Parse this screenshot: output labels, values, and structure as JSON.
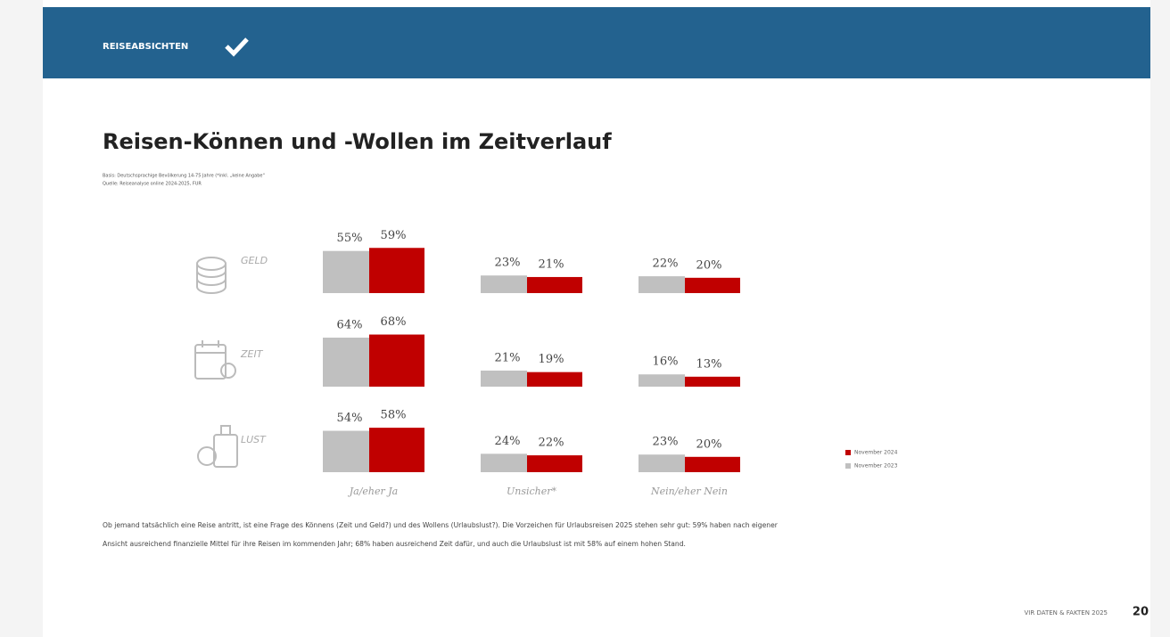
{
  "header": {
    "title": "REISEABSICHTEN"
  },
  "title": "Reisen-Können und -Wollen im Zeitverlauf",
  "notes": [
    "Basis: Deutschsprachige Bevölkerung 14-75 Jahre (*inkl. „keine Angabe“",
    "Quelle: Reiseanalyse online 2024-2025, FUR"
  ],
  "chart_data": {
    "type": "bar",
    "groups": [
      "GELD",
      "ZEIT",
      "LUST"
    ],
    "categories": [
      "Ja/eher Ja",
      "Unsicher*",
      "Nein/eher Nein"
    ],
    "series": [
      {
        "name": "November 2023",
        "color": "#c0c0c0",
        "values": [
          [
            55,
            23,
            22
          ],
          [
            64,
            21,
            16
          ],
          [
            54,
            24,
            23
          ]
        ],
        "value_labels": [
          [
            "55%",
            "23%",
            "22%"
          ],
          [
            "64%",
            "21%",
            "16%"
          ],
          [
            "54%",
            "24%",
            "23%"
          ]
        ]
      },
      {
        "name": "November 2024",
        "color": "#c00000",
        "values": [
          [
            59,
            21,
            20
          ],
          [
            68,
            19,
            13
          ],
          [
            58,
            22,
            20
          ]
        ],
        "value_labels": [
          [
            "59%",
            "21%",
            "20%"
          ],
          [
            "68%",
            "19%",
            "13%"
          ],
          [
            "58%",
            "22%",
            "20%"
          ]
        ]
      }
    ]
  },
  "body": [
    "Ob jemand tatsächlich eine Reise antritt, ist eine Frage des Könnens (Zeit und Geld?) und des Wollens (Urlaubslust?). Die Vorzeichen für Urlaubsreisen 2025 stehen sehr gut: 59% haben nach eigener",
    "Ansicht ausreichend finanzielle Mittel für ihre Reisen im kommenden Jahr; 68% haben ausreichend Zeit dafür, und auch die Urlaubslust ist mit 58% auf einem hohen Stand."
  ],
  "footer": {
    "text": "VIR DATEN & FAKTEN 2025",
    "page": "20"
  }
}
